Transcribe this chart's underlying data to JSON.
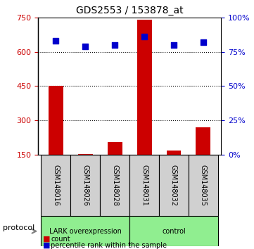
{
  "title": "GDS2553 / 153878_at",
  "samples": [
    "GSM148016",
    "GSM148026",
    "GSM148028",
    "GSM148031",
    "GSM148032",
    "GSM148035"
  ],
  "counts": [
    450,
    155,
    205,
    740,
    170,
    270
  ],
  "percentile_ranks": [
    83,
    79,
    80,
    86,
    80,
    82
  ],
  "groups": [
    "LARK overexpression",
    "LARK overexpression",
    "LARK overexpression",
    "control",
    "control",
    "control"
  ],
  "group_colors": {
    "LARK overexpression": "#90EE90",
    "control": "#90EE90"
  },
  "left_ylim": [
    150,
    750
  ],
  "left_yticks": [
    150,
    300,
    450,
    600,
    750
  ],
  "right_ylim": [
    0,
    100
  ],
  "right_yticks": [
    0,
    25,
    50,
    75,
    100
  ],
  "left_tick_color": "#cc0000",
  "right_tick_color": "#0000cc",
  "bar_color": "#cc0000",
  "dot_color": "#0000cc",
  "bar_width": 0.5,
  "background_color": "#ffffff",
  "plot_bg_color": "#ffffff",
  "grid_color": "#000000",
  "legend_count_label": "count",
  "legend_pct_label": "percentile rank within the sample",
  "protocol_label": "protocol",
  "sample_box_color": "#d0d0d0",
  "group_box_color": "#90EE90",
  "group_label_1": "LARK overexpression",
  "group_label_2": "control",
  "group_split": 3
}
